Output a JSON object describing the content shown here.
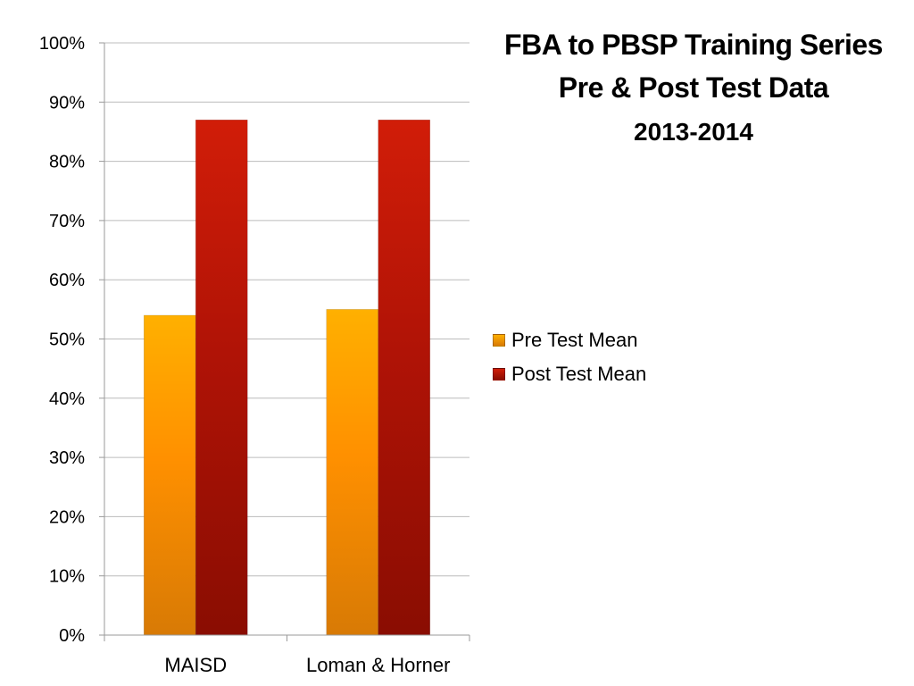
{
  "title": {
    "line1": "FBA to PBSP Training Series",
    "line2": "Pre & Post Test Data",
    "line3": "2013-2014"
  },
  "colors": {
    "pre_top": "#ffb000",
    "pre_mid": "#ff9000",
    "pre_bottom": "#d87a05",
    "post_top": "#d11d08",
    "post_mid": "#b01306",
    "post_bottom": "#8a0d02",
    "grid": "#bcbcbc",
    "axis": "#9a9a9a"
  },
  "chart_data": {
    "type": "bar",
    "categories": [
      "MAISD",
      "Loman & Horner"
    ],
    "series": [
      {
        "name": "Pre Test Mean",
        "values": [
          54,
          55
        ]
      },
      {
        "name": "Post Test Mean",
        "values": [
          87,
          87
        ]
      }
    ],
    "ylim": [
      0,
      100
    ],
    "yticks": [
      "0%",
      "10%",
      "20%",
      "30%",
      "40%",
      "50%",
      "60%",
      "70%",
      "80%",
      "90%",
      "100%"
    ],
    "grid": true,
    "legend_position": "right"
  }
}
